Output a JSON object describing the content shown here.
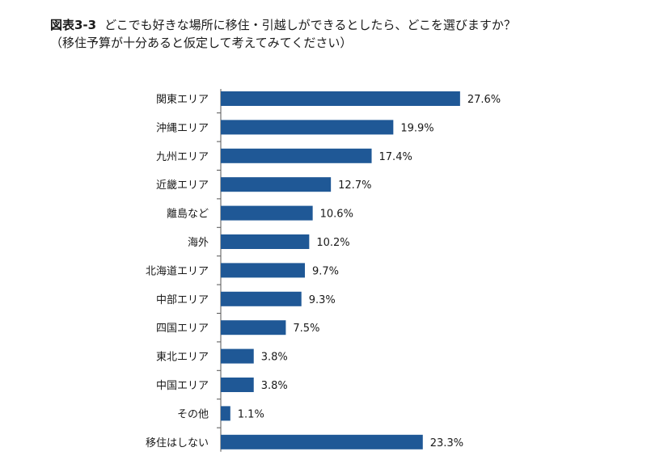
{
  "figure_number": "図表3-3",
  "title": "どこでも好きな場所に移住・引越しができるとしたら、どこを選びますか？",
  "subtitle": "（移住予算が十分あると仮定して考えてみてください）",
  "chart_data": {
    "type": "bar",
    "orientation": "horizontal",
    "title": "どこでも好きな場所に移住・引越しができるとしたら、どこを選びますか？",
    "subtitle": "（移住予算が十分あると仮定して考えてみてください）",
    "categories": [
      "関東エリア",
      "沖縄エリア",
      "九州エリア",
      "近畿エリア",
      "離島など",
      "海外",
      "北海道エリア",
      "中部エリア",
      "四国エリア",
      "東北エリア",
      "中国エリア",
      "その他",
      "移住はしない"
    ],
    "values": [
      27.6,
      19.9,
      17.4,
      12.7,
      10.6,
      10.2,
      9.7,
      9.3,
      7.5,
      3.8,
      3.8,
      1.1,
      23.3
    ],
    "value_labels": [
      "27.6%",
      "19.9%",
      "17.4%",
      "12.7%",
      "10.6%",
      "10.2%",
      "9.7%",
      "9.3%",
      "7.5%",
      "3.8%",
      "3.8%",
      "1.1%",
      "23.3%"
    ],
    "unit": "%",
    "bar_color": "#1f5896",
    "grid": false,
    "legend": "none"
  }
}
